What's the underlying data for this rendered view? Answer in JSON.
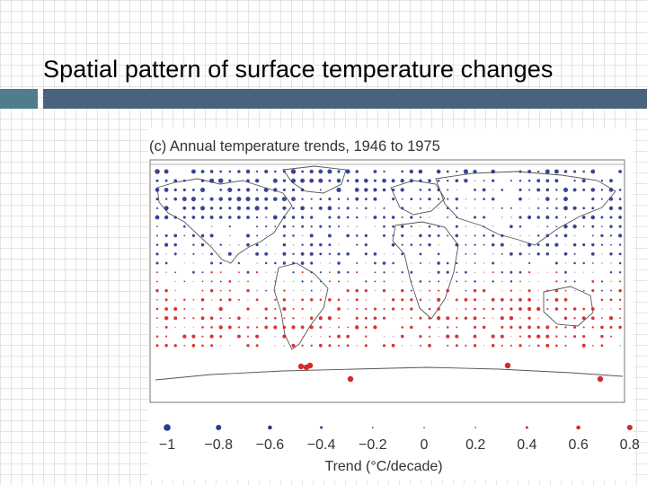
{
  "slide": {
    "title": "Spatial pattern of surface temperature changes"
  },
  "chart_data": {
    "type": "scatter",
    "title": "(c) Annual temperature trends, 1946 to 1975",
    "xlabel": "Trend (°C/decade)",
    "legend_values": [
      -1,
      -0.8,
      -0.6,
      -0.4,
      -0.2,
      0,
      0.2,
      0.4,
      0.6,
      0.8
    ],
    "legend_labels": [
      "−1",
      "−0.8",
      "−0.6",
      "−0.4",
      "−0.2",
      "0",
      "0.2",
      "0.4",
      "0.6",
      "0.8"
    ],
    "colors": {
      "cooling": "#2e3b8c",
      "warming": "#d42a2a"
    },
    "description": "Gridded map of annual temperature trends; circle size proportional to trend magnitude, blue = cooling, red = warming"
  }
}
